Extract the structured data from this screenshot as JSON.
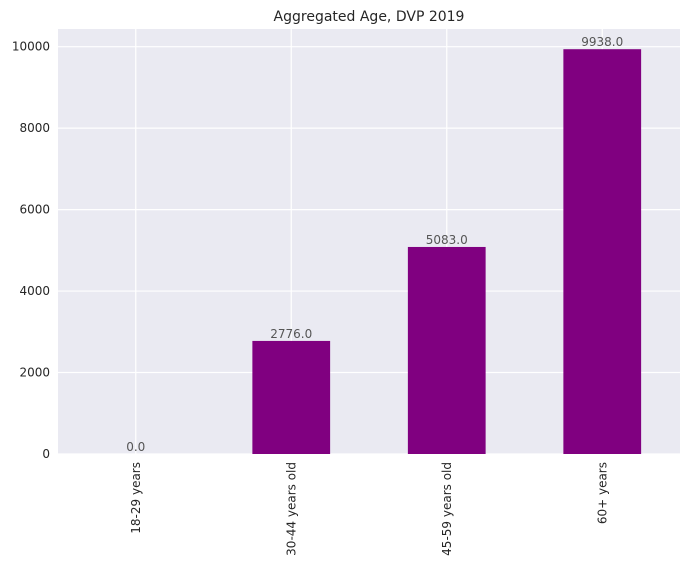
{
  "chart_data": {
    "type": "bar",
    "title": "Aggregated Age, DVP 2019",
    "categories": [
      "18-29 years",
      "30-44 years old",
      "45-59 years old",
      "60+ years"
    ],
    "values": [
      0,
      2776,
      5083,
      9938
    ],
    "data_labels": [
      "0.0",
      "2776.0",
      "5083.0",
      "9938.0"
    ],
    "yticks": [
      0,
      2000,
      4000,
      6000,
      8000,
      10000
    ],
    "ytick_labels": [
      "0",
      "2000",
      "4000",
      "6000",
      "8000",
      "10000"
    ],
    "ylim": [
      0,
      10434
    ],
    "xlabel": "",
    "ylabel": "",
    "grid": true,
    "legend": "none",
    "bar_color": "#800080",
    "background_color": "#EAEAF2"
  }
}
